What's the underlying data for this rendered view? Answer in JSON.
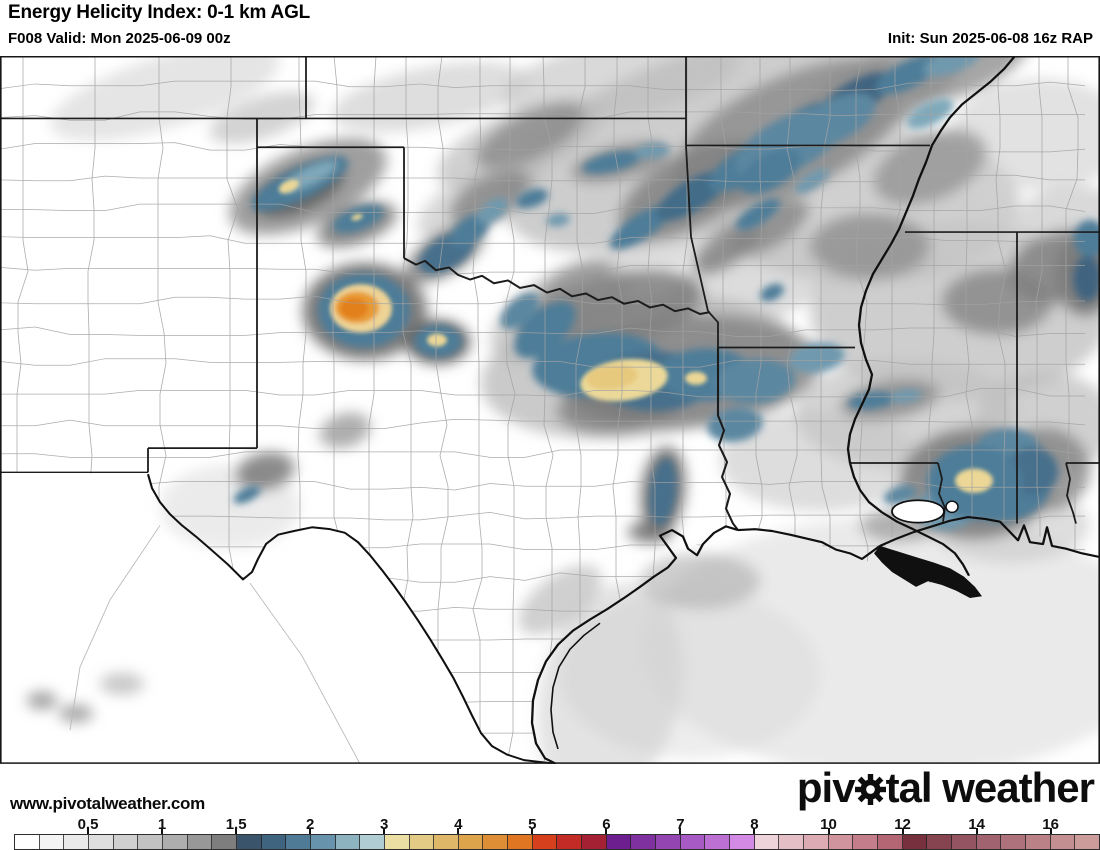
{
  "header": {
    "title": "Energy Helicity Index: 0-1 km AGL",
    "valid": "F008 Valid: Mon 2025-06-09 00z",
    "init": "Init: Sun 2025-06-08 16z RAP"
  },
  "watermark": "www.pivotalweather.com",
  "logo": {
    "pre": "piv",
    "post": "tal weather"
  },
  "colorbar": {
    "labels": [
      "0.5",
      "1",
      "1.5",
      "2",
      "3",
      "4",
      "5",
      "6",
      "7",
      "8",
      "10",
      "12",
      "14",
      "16"
    ],
    "cell_colors": [
      "#ffffff",
      "#f4f4f4",
      "#eaeaea",
      "#dedede",
      "#d0d0d0",
      "#c2c2c2",
      "#aeaeae",
      "#989898",
      "#7e7e7e",
      "#3a546c",
      "#3f6480",
      "#4f7b97",
      "#6793ac",
      "#8db2c0",
      "#b0cdd3",
      "#ecdfa4",
      "#e4cb85",
      "#dfb768",
      "#dda44c",
      "#de8f35",
      "#e07622",
      "#d6401c",
      "#c22b26",
      "#a32133",
      "#6e1f8f",
      "#8031a0",
      "#9346b2",
      "#a75ac4",
      "#bc70d4",
      "#d28ae4",
      "#eed4da",
      "#e5bfc6",
      "#dcabb4",
      "#d0949f",
      "#c47e8b",
      "#b56675",
      "#76303e",
      "#864350",
      "#955462",
      "#a26370",
      "#ae727c",
      "#ba8186",
      "#c48f90",
      "#cc9c9a"
    ]
  },
  "chart_data": {
    "type": "heatmap",
    "title": "Energy Helicity Index: 0-1 km AGL",
    "model": "RAP",
    "forecast_hour": "F008",
    "valid_time": "Mon 2025-06-09 00z",
    "init_time": "Sun 2025-06-08 16z",
    "scale_values": [
      0.5,
      1,
      1.5,
      2,
      3,
      4,
      5,
      6,
      7,
      8,
      10,
      12,
      14,
      16
    ],
    "notable_maxima": [
      {
        "region": "eastern Texas Panhandle",
        "approx_value": "3-4"
      },
      {
        "region": "north-central Texas",
        "approx_value": "3"
      },
      {
        "region": "southeast Louisiana coast",
        "approx_value": "3"
      },
      {
        "region": "western Oklahoma",
        "approx_value": "3"
      }
    ]
  }
}
